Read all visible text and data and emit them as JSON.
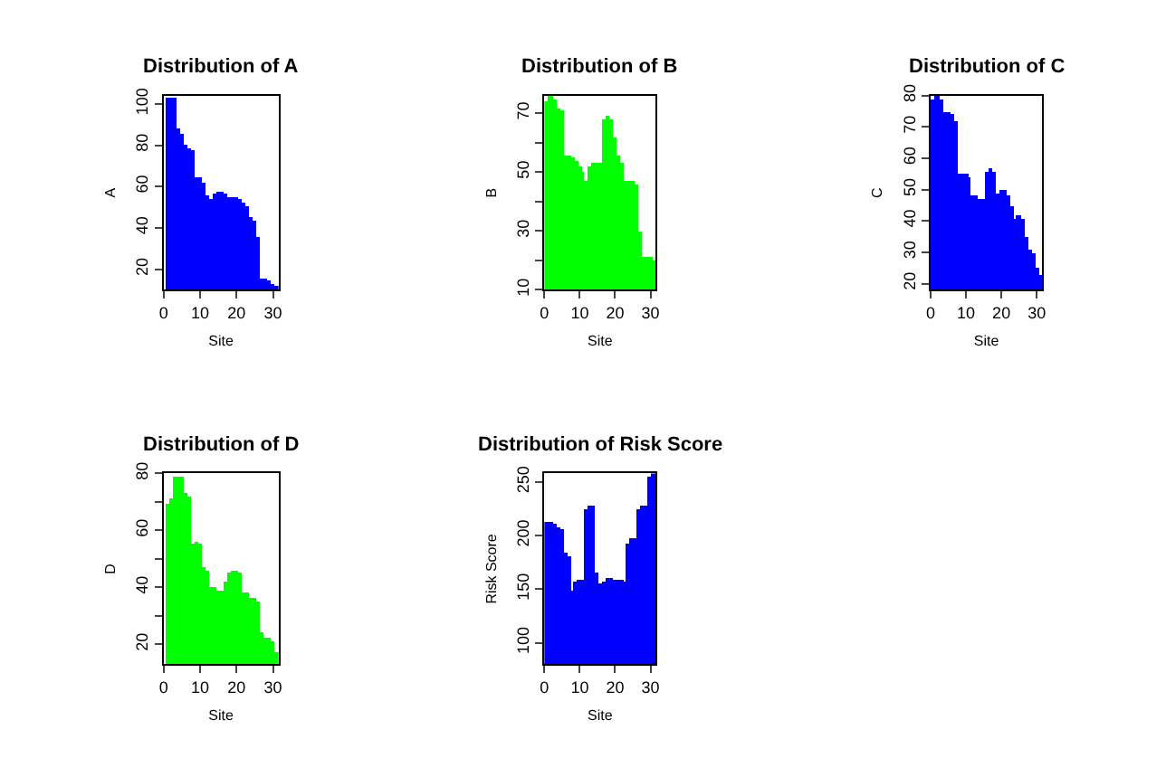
{
  "chart_data": [
    {
      "type": "bar",
      "title": "Distribution of A",
      "xlabel": "Site",
      "ylabel": "A",
      "x": [
        1,
        2,
        3,
        4,
        5,
        6,
        7,
        8,
        9,
        10,
        11,
        12,
        13,
        14,
        15,
        16,
        17,
        18,
        19,
        20,
        21,
        22,
        23,
        24,
        25,
        26,
        27,
        28,
        29,
        30,
        31
      ],
      "series": [
        {
          "color": "#0000ff",
          "values": [
            103,
            103,
            103,
            88,
            86,
            80,
            79,
            78,
            65,
            65,
            62,
            56,
            54,
            57,
            58,
            58,
            57,
            55,
            55,
            55,
            54,
            52,
            51,
            45,
            44,
            36,
            16,
            16,
            15,
            13,
            12
          ]
        }
      ],
      "xlim": [
        0,
        31.5
      ],
      "ylim": [
        10,
        104
      ],
      "xticks": [
        0,
        10,
        20,
        30
      ],
      "yticks": [
        20,
        40,
        60,
        80,
        100
      ]
    },
    {
      "type": "bar",
      "title": "Distribution of B",
      "xlabel": "Site",
      "ylabel": "B",
      "x": [
        1,
        2,
        3,
        4,
        5,
        6,
        7,
        8,
        9,
        10,
        11,
        12,
        13,
        14,
        15,
        16,
        17,
        18,
        19,
        20,
        21,
        22,
        23,
        24,
        25,
        26,
        27,
        28,
        29,
        30,
        31
      ],
      "series": [
        {
          "color": "#00ff00",
          "values": [
            74,
            76,
            75,
            72,
            71,
            56,
            56,
            55,
            54,
            52,
            50,
            47,
            52,
            53,
            53,
            53,
            68,
            69,
            68,
            62,
            56,
            53,
            47,
            47,
            47,
            46,
            30,
            21,
            21,
            21,
            20
          ]
        }
      ],
      "xlim": [
        0,
        31.5
      ],
      "ylim": [
        10,
        76
      ],
      "xticks": [
        0,
        10,
        20,
        30
      ],
      "yticks": [
        10,
        {
          "value": 20,
          "label": null
        },
        30,
        {
          "value": 40,
          "label": null
        },
        50,
        {
          "value": 60,
          "label": null
        },
        70
      ]
    },
    {
      "type": "bar",
      "title": "Distribution of C",
      "xlabel": "Site",
      "ylabel": "C",
      "x": [
        1,
        2,
        3,
        4,
        5,
        6,
        7,
        8,
        9,
        10,
        11,
        12,
        13,
        14,
        15,
        16,
        17,
        18,
        19,
        20,
        21,
        22,
        23,
        24,
        25,
        26,
        27,
        28,
        29,
        30,
        31
      ],
      "series": [
        {
          "color": "#0000ff",
          "values": [
            79,
            80,
            79,
            75,
            75,
            74,
            72,
            55,
            55,
            55,
            54,
            48,
            48,
            47,
            47,
            56,
            57,
            56,
            49,
            50,
            50,
            48,
            45,
            41,
            42,
            41,
            35,
            31,
            30,
            25,
            23
          ]
        }
      ],
      "xlim": [
        0,
        31.5
      ],
      "ylim": [
        18,
        80
      ],
      "xticks": [
        0,
        10,
        20,
        30
      ],
      "yticks": [
        20,
        30,
        40,
        50,
        60,
        70,
        80
      ]
    },
    {
      "type": "bar",
      "title": "Distribution of D",
      "xlabel": "Site",
      "ylabel": "D",
      "x": [
        1,
        2,
        3,
        4,
        5,
        6,
        7,
        8,
        9,
        10,
        11,
        12,
        13,
        14,
        15,
        16,
        17,
        18,
        19,
        20,
        21,
        22,
        23,
        24,
        25,
        26,
        27,
        28,
        29,
        30,
        31
      ],
      "series": [
        {
          "color": "#00ff00",
          "values": [
            69,
            71,
            79,
            79,
            79,
            73,
            72,
            55,
            56,
            55,
            47,
            46,
            40,
            40,
            39,
            39,
            42,
            45,
            46,
            46,
            45,
            38,
            38,
            36,
            36,
            35,
            24,
            22,
            22,
            21,
            17
          ]
        }
      ],
      "xlim": [
        0,
        31.5
      ],
      "ylim": [
        13,
        80
      ],
      "xticks": [
        0,
        10,
        20,
        30
      ],
      "yticks": [
        20,
        {
          "value": 30,
          "label": null
        },
        40,
        {
          "value": 50,
          "label": null
        },
        60,
        {
          "value": 70,
          "label": null
        },
        80
      ]
    },
    {
      "type": "bar",
      "title": "Distribution of Risk Score",
      "xlabel": "Site",
      "ylabel": "Risk Score",
      "x": [
        1,
        2,
        3,
        4,
        5,
        6,
        7,
        8,
        9,
        10,
        11,
        12,
        13,
        14,
        15,
        16,
        17,
        18,
        19,
        20,
        21,
        22,
        23,
        24,
        25,
        26,
        27,
        28,
        29,
        30,
        31
      ],
      "series": [
        {
          "color": "#0000ff",
          "values": [
            212,
            212,
            210,
            208,
            206,
            184,
            180,
            148,
            156,
            158,
            158,
            225,
            228,
            228,
            165,
            155,
            157,
            160,
            160,
            159,
            158,
            158,
            156,
            193,
            197,
            198,
            225,
            227,
            228,
            255,
            258
          ]
        }
      ],
      "xlim": [
        0,
        31.5
      ],
      "ylim": [
        80,
        258
      ],
      "xticks": [
        0,
        10,
        20,
        30
      ],
      "yticks": [
        100,
        150,
        200,
        250
      ]
    }
  ]
}
